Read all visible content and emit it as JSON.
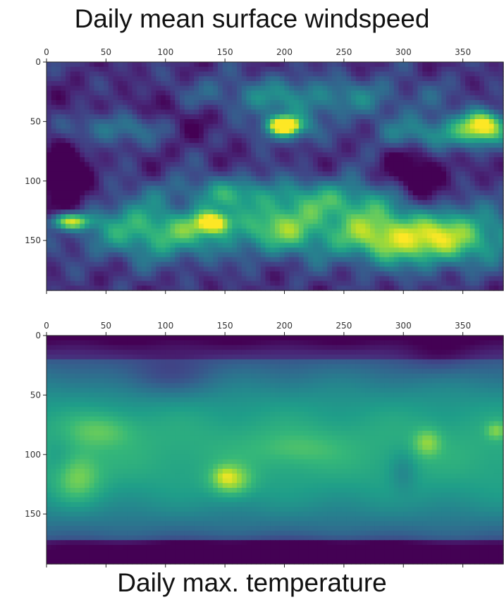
{
  "titles": {
    "top": "Daily mean surface windspeed",
    "bottom": "Daily max. temperature"
  },
  "colormap": [
    "#440154",
    "#482878",
    "#3e4a89",
    "#31688e",
    "#26828e",
    "#1f9e89",
    "#35b779",
    "#6ece58",
    "#b5de2b",
    "#fde725"
  ],
  "chart_data": [
    {
      "type": "heatmap",
      "title": "Daily mean surface windspeed",
      "xlabel": "",
      "ylabel": "",
      "xlim": [
        0,
        384
      ],
      "ylim": [
        192,
        0
      ],
      "xticks": [
        0,
        50,
        100,
        150,
        200,
        250,
        300,
        350
      ],
      "yticks": [
        0,
        50,
        100,
        150
      ],
      "tick_labels_x": [
        "0",
        "50",
        "100",
        "150",
        "200",
        "250",
        "300",
        "350"
      ],
      "tick_labels_y": [
        "0",
        "50",
        "100",
        "150"
      ],
      "grid": false,
      "field": "windspeed",
      "value_range": [
        0,
        1
      ],
      "features": [
        {
          "x": 200,
          "y": 53,
          "sx": 7,
          "sy": 4,
          "v": 0.95
        },
        {
          "x": 200,
          "y": 55,
          "sx": 16,
          "sy": 8,
          "v": 0.55
        },
        {
          "x": 367,
          "y": 52,
          "sx": 12,
          "sy": 8,
          "v": 0.65
        },
        {
          "x": 20,
          "y": 134,
          "sx": 12,
          "sy": 5,
          "v": 0.75
        },
        {
          "x": 140,
          "y": 135,
          "sx": 10,
          "sy": 6,
          "v": 0.65
        },
        {
          "x": 200,
          "y": 140,
          "sx": 25,
          "sy": 15,
          "v": 0.45
        },
        {
          "x": 100,
          "y": 140,
          "sx": 40,
          "sy": 18,
          "v": 0.5
        },
        {
          "x": 320,
          "y": 150,
          "sx": 50,
          "sy": 15,
          "v": 0.5
        },
        {
          "x": 300,
          "y": 140,
          "sx": 40,
          "sy": 20,
          "v": 0.4
        },
        {
          "x": 200,
          "y": 30,
          "sx": 80,
          "sy": 12,
          "v": 0.35
        },
        {
          "x": 340,
          "y": 60,
          "sx": 40,
          "sy": 10,
          "v": 0.45
        },
        {
          "x": 60,
          "y": 55,
          "sx": 30,
          "sy": 10,
          "v": 0.35
        },
        {
          "x": 150,
          "y": 110,
          "sx": 40,
          "sy": 10,
          "v": 0.35
        },
        {
          "x": 250,
          "y": 115,
          "sx": 40,
          "sy": 12,
          "v": 0.35
        },
        {
          "x": 15,
          "y": 105,
          "sx": 15,
          "sy": 25,
          "v": -0.35
        },
        {
          "x": 310,
          "y": 110,
          "sx": 20,
          "sy": 25,
          "v": -0.35
        },
        {
          "x": 100,
          "y": 40,
          "sx": 50,
          "sy": 15,
          "v": -0.2
        },
        {
          "x": 110,
          "y": 120,
          "sx": 18,
          "sy": 12,
          "v": -0.2
        }
      ]
    },
    {
      "type": "heatmap",
      "title": "Daily max. temperature",
      "xlabel": "",
      "ylabel": "",
      "xlim": [
        0,
        384
      ],
      "ylim": [
        192,
        0
      ],
      "xticks": [
        0,
        50,
        100,
        150,
        200,
        250,
        300,
        350
      ],
      "yticks": [
        0,
        50,
        100,
        150
      ],
      "tick_labels_x": [
        "0",
        "50",
        "100",
        "150",
        "200",
        "250",
        "300",
        "350"
      ],
      "tick_labels_y": [
        "0",
        "50",
        "100",
        "150"
      ],
      "grid": false,
      "field": "temperature",
      "value_range": [
        0,
        1
      ],
      "features": [
        {
          "x": 25,
          "y": 120,
          "sx": 14,
          "sy": 14,
          "v": 0.22
        },
        {
          "x": 155,
          "y": 122,
          "sx": 12,
          "sy": 9,
          "v": 0.3
        },
        {
          "x": 150,
          "y": 118,
          "sx": 6,
          "sy": 5,
          "v": 0.12
        },
        {
          "x": 320,
          "y": 90,
          "sx": 8,
          "sy": 8,
          "v": 0.22
        },
        {
          "x": 378,
          "y": 80,
          "sx": 6,
          "sy": 5,
          "v": 0.2
        },
        {
          "x": 210,
          "y": 95,
          "sx": 25,
          "sy": 10,
          "v": 0.1
        },
        {
          "x": 45,
          "y": 80,
          "sx": 20,
          "sy": 10,
          "v": 0.15
        },
        {
          "x": 300,
          "y": 115,
          "sx": 8,
          "sy": 12,
          "v": -0.12
        },
        {
          "x": 100,
          "y": 35,
          "sx": 30,
          "sy": 12,
          "v": -0.15
        },
        {
          "x": 330,
          "y": 20,
          "sx": 20,
          "sy": 10,
          "v": -0.1
        },
        {
          "x": 200,
          "y": 180,
          "sx": 100,
          "sy": 6,
          "v": -0.15
        },
        {
          "x": 10,
          "y": 105,
          "sx": 10,
          "sy": 15,
          "v": -0.08
        }
      ]
    }
  ]
}
